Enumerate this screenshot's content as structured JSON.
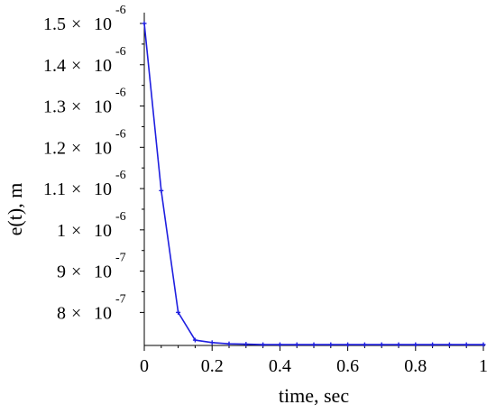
{
  "chart_data": {
    "type": "line",
    "xlabel": "time, sec",
    "ylabel": "e(t), m",
    "xlim": [
      0,
      1
    ],
    "ylim": [
      7.2e-07,
      1.5e-06
    ],
    "x_ticks": [
      {
        "value": 0,
        "label": "0"
      },
      {
        "value": 0.2,
        "label": "0.2"
      },
      {
        "value": 0.4,
        "label": "0.4"
      },
      {
        "value": 0.6,
        "label": "0.6"
      },
      {
        "value": 0.8,
        "label": "0.8"
      },
      {
        "value": 1,
        "label": "1"
      }
    ],
    "y_ticks": [
      {
        "value": 1.5e-06,
        "mantissa": "1.5",
        "times": "×",
        "base": "10",
        "exponent": "-6"
      },
      {
        "value": 1.4e-06,
        "mantissa": "1.4",
        "times": "×",
        "base": "10",
        "exponent": "-6"
      },
      {
        "value": 1.3e-06,
        "mantissa": "1.3",
        "times": "×",
        "base": "10",
        "exponent": "-6"
      },
      {
        "value": 1.2e-06,
        "mantissa": "1.2",
        "times": "×",
        "base": "10",
        "exponent": "-6"
      },
      {
        "value": 1.1e-06,
        "mantissa": "1.1",
        "times": "×",
        "base": "10",
        "exponent": "-6"
      },
      {
        "value": 1e-06,
        "mantissa": "1",
        "times": "×",
        "base": "10",
        "exponent": "-6"
      },
      {
        "value": 9e-07,
        "mantissa": "9",
        "times": "×",
        "base": "10",
        "exponent": "-7"
      },
      {
        "value": 8e-07,
        "mantissa": "8",
        "times": "×",
        "base": "10",
        "exponent": "-7"
      }
    ],
    "grid": false,
    "series": [
      {
        "color": "#1f1fe0",
        "x": [
          0,
          0.05,
          0.1,
          0.15,
          0.2,
          0.25,
          0.3,
          0.35,
          0.4,
          0.45,
          0.5,
          0.55,
          0.6,
          0.65,
          0.7,
          0.75,
          0.8,
          0.85,
          0.9,
          0.95,
          1.0
        ],
        "y": [
          1.5e-06,
          1.095e-06,
          8e-07,
          7.33e-07,
          7.27e-07,
          7.24e-07,
          7.23e-07,
          7.22e-07,
          7.22e-07,
          7.22e-07,
          7.22e-07,
          7.22e-07,
          7.22e-07,
          7.22e-07,
          7.22e-07,
          7.22e-07,
          7.22e-07,
          7.22e-07,
          7.22e-07,
          7.22e-07,
          7.22e-07
        ]
      }
    ]
  }
}
